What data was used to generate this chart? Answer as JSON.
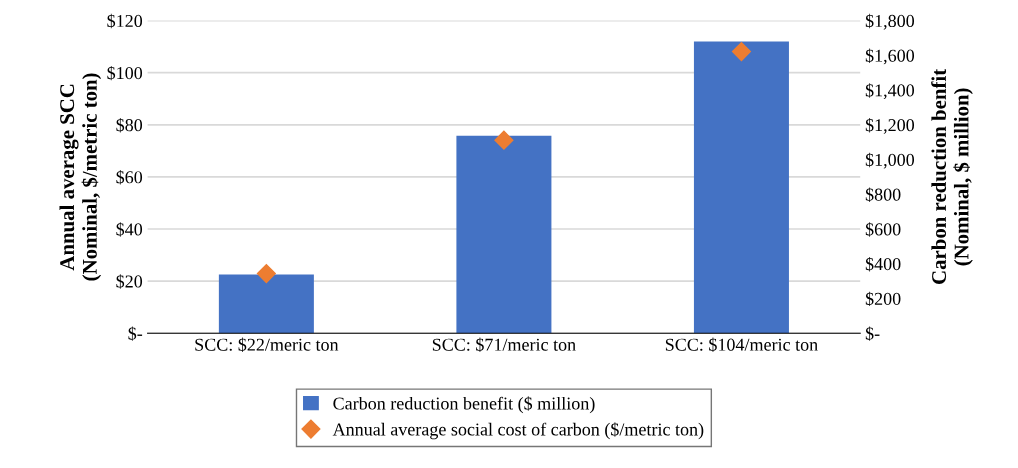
{
  "chart_data": {
    "type": "bar",
    "categories": [
      "SCC: $22/meric ton",
      "SCC: $71/meric ton",
      "SCC: $104/meric ton"
    ],
    "series": [
      {
        "name": "Carbon reduction benefit ($ million)",
        "color": "#4472c4",
        "axis": "y2",
        "values": [
          338,
          1137,
          1680
        ]
      },
      {
        "name": "Annual average social cost of carbon ($/metric ton)",
        "color": "#ed7d31",
        "type": "scatter",
        "axis": "y",
        "marker": "diamond",
        "values": [
          22.9,
          74.1,
          108.1
        ]
      }
    ],
    "ylabel": "Annual average SCC\n(Nominal, $/metric ton)",
    "y2label": "Carbon reduction benfit\n(Nominal, $ million)",
    "ylim": [
      0,
      120
    ],
    "yticks": [
      {
        "value": 0,
        "label": "$-"
      },
      {
        "value": 20,
        "label": "$20"
      },
      {
        "value": 40,
        "label": "$40"
      },
      {
        "value": 60,
        "label": "$60"
      },
      {
        "value": 80,
        "label": "$80"
      },
      {
        "value": 100,
        "label": "$100"
      },
      {
        "value": 120,
        "label": "$120"
      }
    ],
    "y2lim": [
      0,
      1800
    ],
    "y2ticks": [
      {
        "value": 0,
        "label": "$-"
      },
      {
        "value": 200,
        "label": "$200"
      },
      {
        "value": 400,
        "label": "$400"
      },
      {
        "value": 600,
        "label": "$600"
      },
      {
        "value": 800,
        "label": "$800"
      },
      {
        "value": 1000,
        "label": "$1,000"
      },
      {
        "value": 1200,
        "label": "$1,200"
      },
      {
        "value": 1400,
        "label": "$1,400"
      },
      {
        "value": 1600,
        "label": "$1,600"
      },
      {
        "value": 1800,
        "label": "$1,800"
      }
    ],
    "grid": "y",
    "legend": "bottom"
  }
}
